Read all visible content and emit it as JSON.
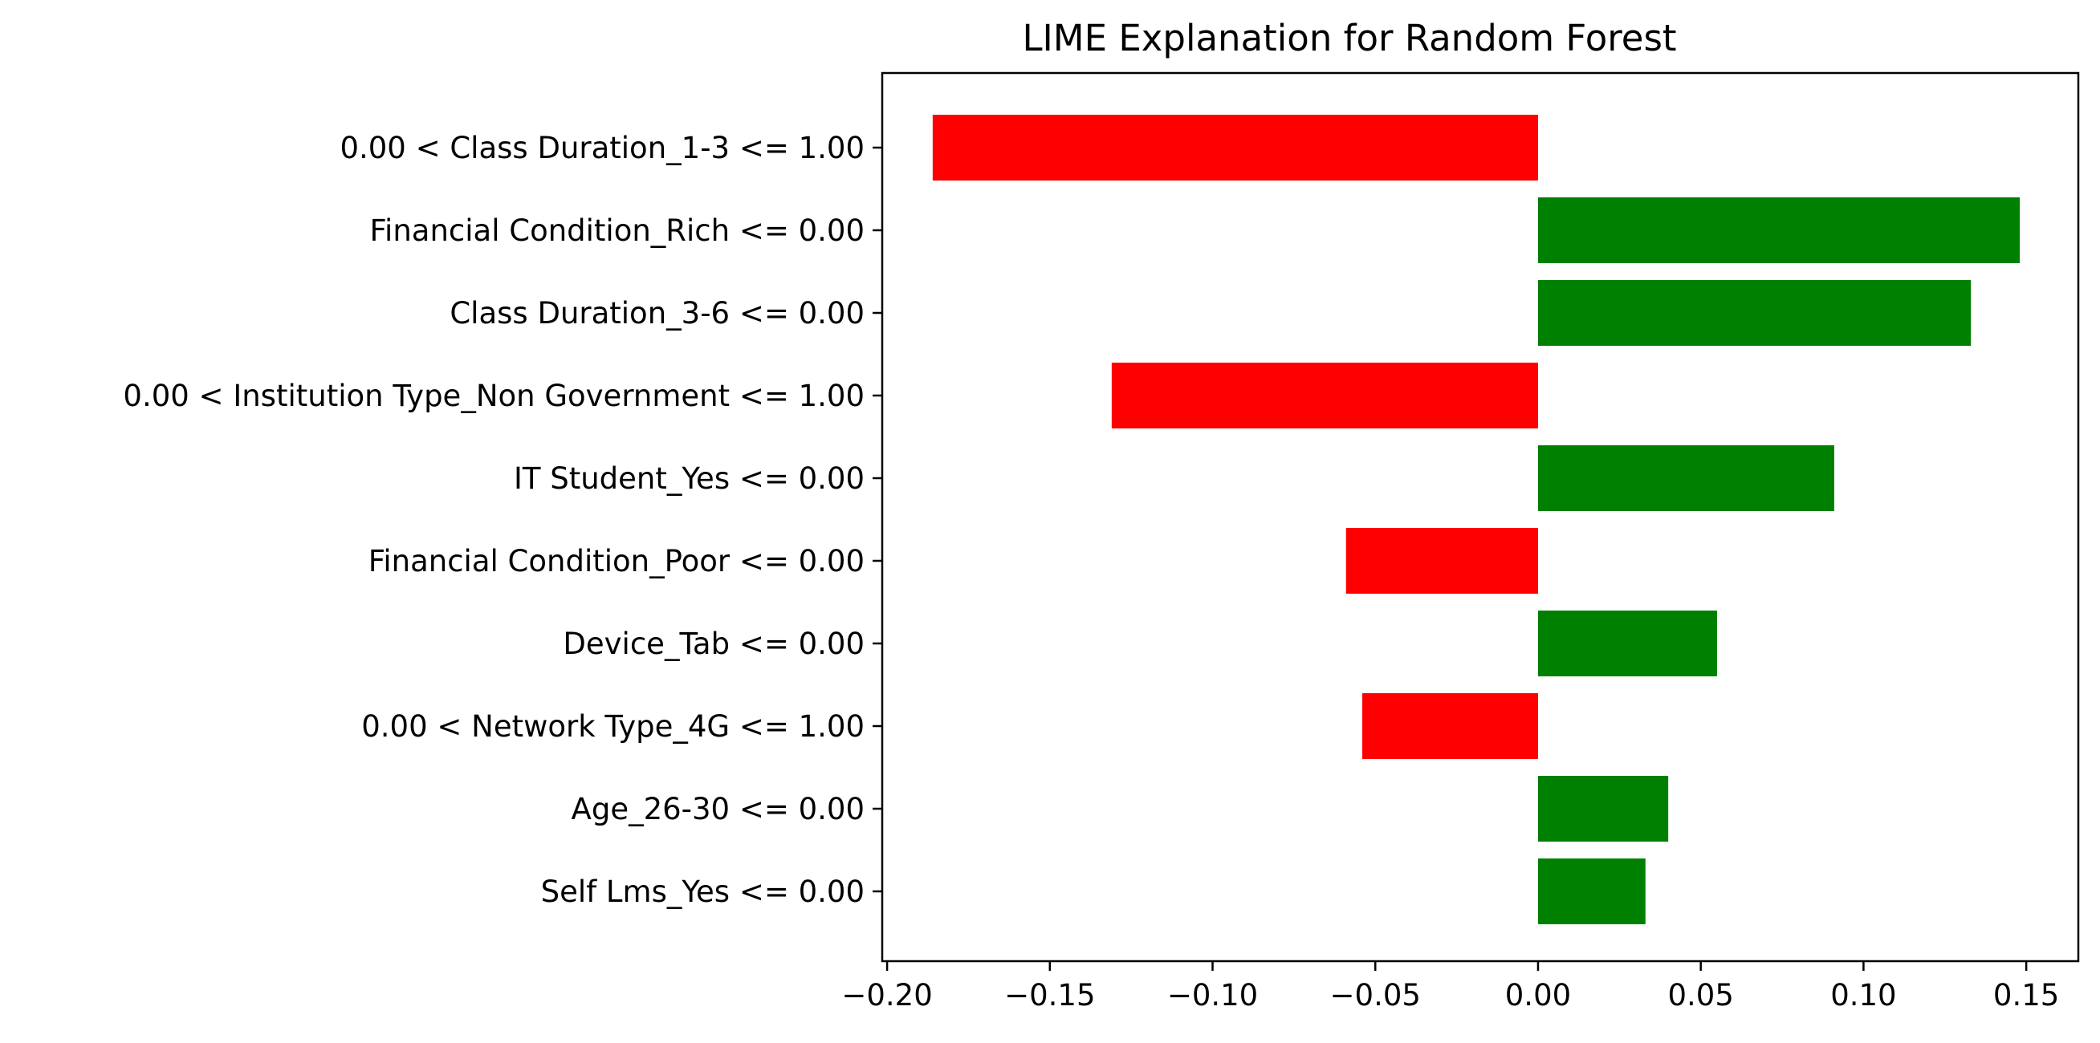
{
  "chart_data": {
    "type": "bar",
    "orientation": "horizontal",
    "title": "LIME Explanation for Random Forest",
    "xlabel": "",
    "ylabel": "",
    "xlim": [
      -0.2015,
      0.166
    ],
    "xticks": [
      -0.2,
      -0.15,
      -0.1,
      -0.05,
      0.0,
      0.05,
      0.1,
      0.15
    ],
    "xtick_labels": [
      "−0.20",
      "−0.15",
      "−0.10",
      "−0.05",
      "0.00",
      "0.05",
      "0.10",
      "0.15"
    ],
    "grid": false,
    "categories": [
      "0.00 < Class Duration_1-3 <= 1.00",
      "Financial Condition_Rich <= 0.00",
      "Class Duration_3-6 <= 0.00",
      "0.00 < Institution Type_Non Government <= 1.00",
      "IT Student_Yes <= 0.00",
      "Financial Condition_Poor <= 0.00",
      "Device_Tab <= 0.00",
      "0.00 < Network Type_4G <= 1.00",
      "Age_26-30 <= 0.00",
      "Self Lms_Yes <= 0.00"
    ],
    "values": [
      -0.186,
      0.148,
      0.133,
      -0.131,
      0.091,
      -0.059,
      0.055,
      -0.054,
      0.04,
      0.033
    ],
    "colors": {
      "positive": "#008000",
      "negative": "#ff0000"
    }
  }
}
